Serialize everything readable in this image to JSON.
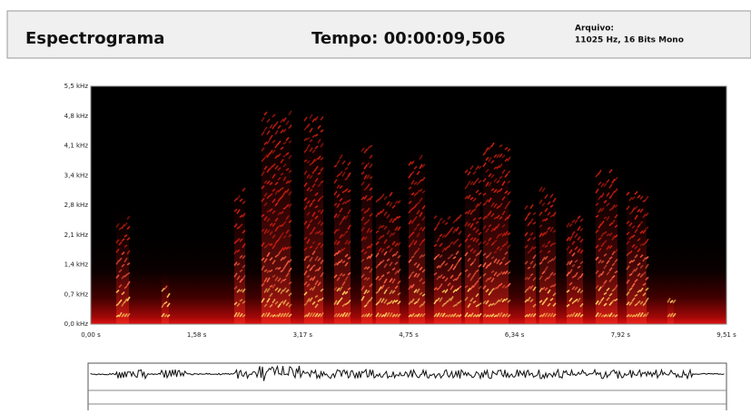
{
  "header": {
    "title": "Espectrograma",
    "time_label": "Tempo: 00:00:09,506",
    "file_label": "Arquivo:",
    "file_info": "11025 Hz, 16 Bits Mono"
  },
  "spectrogram": {
    "y_ticks": [
      "5,5 kHz",
      "4,8 kHz",
      "4,1 kHz",
      "3,4 kHz",
      "2,8 kHz",
      "2,1 kHz",
      "1,4 kHz",
      "0,7 kHz",
      "0,0 kHz"
    ],
    "x_ticks": [
      "0,00 s",
      "1,58 s",
      "3,17 s",
      "4,75 s",
      "6,34 s",
      "7,92 s",
      "9,51 s"
    ]
  }
}
